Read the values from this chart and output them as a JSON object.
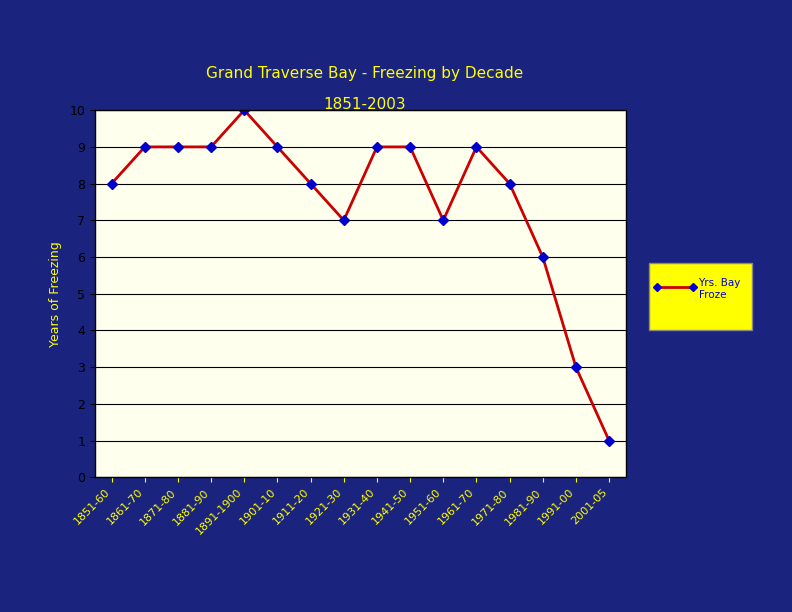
{
  "title_line1": "Grand Traverse Bay - Freezing by Decade",
  "title_line2": "1851-2003",
  "title_color": "#FFFF00",
  "background_outer": "#1a237e",
  "background_plot": "#FFFFEE",
  "ylabel": "Years of Freezing",
  "categories": [
    "1851-60",
    "1861-70",
    "1871-80",
    "1881-90",
    "1891-1900",
    "1901-10",
    "1911-20",
    "1921-30",
    "1931-40",
    "1941-50",
    "1951-60",
    "1961-70",
    "1971-80",
    "1981-90",
    "1991-00",
    "2001-05"
  ],
  "values": [
    8,
    9,
    9,
    9,
    10,
    9,
    8,
    7,
    9,
    9,
    7,
    9,
    8,
    6,
    3,
    1
  ],
  "line_color": "#CC0000",
  "marker_color": "#0000CC",
  "marker_style": "D",
  "marker_size": 5,
  "ylim": [
    0,
    10
  ],
  "legend_label": "Yrs. Bay\nFroze",
  "legend_bg": "#FFFF00",
  "legend_text_color": "#0000CC",
  "tick_label_color": "#FFFF00",
  "axis_label_color": "#FFFF00",
  "grid_color": "#000000",
  "grid_linewidth": 0.8
}
